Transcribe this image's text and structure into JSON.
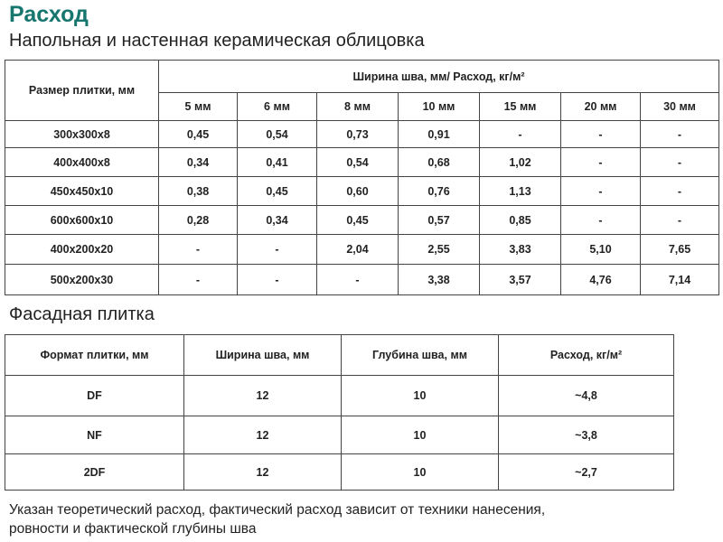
{
  "header": {
    "title": "Расход",
    "subtitle": "Напольная и настенная керамическая облицовка"
  },
  "table1": {
    "size_header": "Размер плитки, мм",
    "group_header": "Ширина шва, мм/ Расход, кг/м²",
    "columns": [
      "5 мм",
      "6 мм",
      "8 мм",
      "10 мм",
      "15 мм",
      "20 мм",
      "30 мм"
    ],
    "rows": [
      [
        "300x300x8",
        "0,45",
        "0,54",
        "0,73",
        "0,91",
        "-",
        "-",
        "-"
      ],
      [
        "400x400x8",
        "0,34",
        "0,41",
        "0,54",
        "0,68",
        "1,02",
        "-",
        "-"
      ],
      [
        "450x450x10",
        "0,38",
        "0,45",
        "0,60",
        "0,76",
        "1,13",
        "-",
        "-"
      ],
      [
        "600x600x10",
        "0,28",
        "0,34",
        "0,45",
        "0,57",
        "0,85",
        "-",
        "-"
      ],
      [
        "400x200x20",
        "-",
        "-",
        "2,04",
        "2,55",
        "3,83",
        "5,10",
        "7,65"
      ],
      [
        "500x200x30",
        "-",
        "-",
        "-",
        "3,38",
        "3,57",
        "4,76",
        "7,14"
      ]
    ]
  },
  "section2": {
    "title": "Фасадная плитка"
  },
  "table2": {
    "columns": [
      "Формат плитки, мм",
      "Ширина шва, мм",
      "Глубина шва, мм",
      "Расход, кг/м²"
    ],
    "rows": [
      [
        "DF",
        "12",
        "10",
        "~4,8"
      ],
      [
        "NF",
        "12",
        "10",
        "~3,8"
      ],
      [
        "2DF",
        "12",
        "10",
        "~2,7"
      ]
    ]
  },
  "footnote": {
    "lines": [
      "Указан теоретический расход, фактический расход зависит от техники нанесения,",
      "ровности и фактической глубины шва"
    ]
  }
}
